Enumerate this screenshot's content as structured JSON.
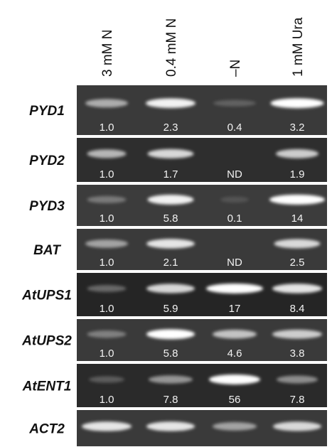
{
  "columns": [
    "3 mM N",
    "0.4 mM N",
    "–N",
    "1 mM Ura"
  ],
  "rows": [
    {
      "label": "PYD1",
      "values": [
        "1.0",
        "2.3",
        "0.4",
        "3.2"
      ]
    },
    {
      "label": "PYD2",
      "values": [
        "1.0",
        "1.7",
        "ND",
        "1.9"
      ]
    },
    {
      "label": "PYD3",
      "values": [
        "1.0",
        "5.8",
        "0.1",
        "14"
      ]
    },
    {
      "label": "BAT",
      "values": [
        "1.0",
        "2.1",
        "ND",
        "2.5"
      ]
    },
    {
      "label": "AtUPS1",
      "values": [
        "1.0",
        "5.9",
        "17",
        "8.4"
      ]
    },
    {
      "label": "AtUPS2",
      "values": [
        "1.0",
        "5.8",
        "4.6",
        "3.8"
      ]
    },
    {
      "label": "AtENT1",
      "values": [
        "1.0",
        "7.8",
        "56",
        "7.8"
      ]
    },
    {
      "label": "ACT2",
      "values": []
    }
  ]
}
